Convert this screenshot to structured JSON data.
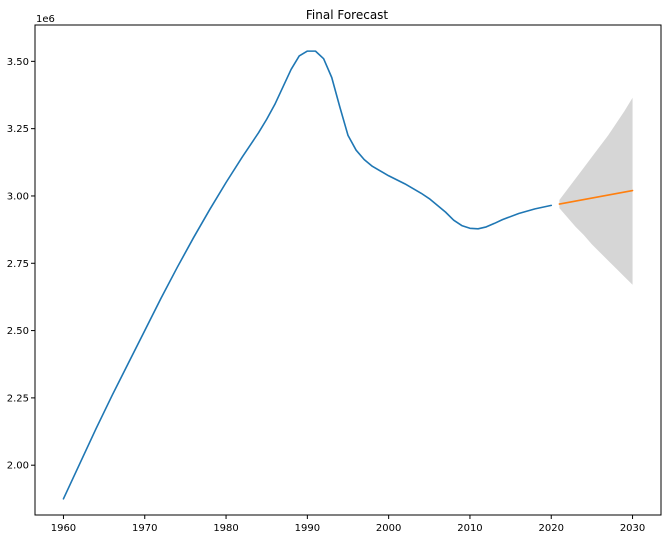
{
  "chart_data": {
    "type": "line",
    "title": "Final Forecast",
    "xlabel": "",
    "ylabel": "",
    "y_offset_label": "1e6",
    "xlim": [
      1956.5,
      2033.5
    ],
    "ylim": [
      1.815,
      3.635
    ],
    "x_ticks": [
      1960,
      1970,
      1980,
      1990,
      2000,
      2010,
      2020,
      2030
    ],
    "x_tick_labels": [
      "1960",
      "1970",
      "1980",
      "1990",
      "2000",
      "2010",
      "2020",
      "2030"
    ],
    "y_ticks": [
      2.0,
      2.25,
      2.5,
      2.75,
      3.0,
      3.25,
      3.5
    ],
    "y_tick_labels": [
      "2.00",
      "2.25",
      "2.50",
      "2.75",
      "3.00",
      "3.25",
      "3.50"
    ],
    "grid": false,
    "legend": "none",
    "series": [
      {
        "color": "#1f77b4",
        "x": [
          1960,
          1962,
          1964,
          1966,
          1968,
          1970,
          1972,
          1974,
          1976,
          1978,
          1980,
          1982,
          1984,
          1985,
          1986,
          1987,
          1988,
          1989,
          1990,
          1991,
          1992,
          1993,
          1994,
          1995,
          1996,
          1997,
          1998,
          2000,
          2002,
          2004,
          2005,
          2006,
          2007,
          2008,
          2009,
          2010,
          2011,
          2012,
          2013,
          2014,
          2016,
          2018,
          2020
        ],
        "values": [
          1.875,
          2.005,
          2.135,
          2.26,
          2.38,
          2.5,
          2.62,
          2.735,
          2.845,
          2.95,
          3.05,
          3.145,
          3.235,
          3.285,
          3.34,
          3.405,
          3.47,
          3.52,
          3.538,
          3.538,
          3.51,
          3.44,
          3.33,
          3.225,
          3.17,
          3.135,
          3.11,
          3.075,
          3.045,
          3.01,
          2.99,
          2.965,
          2.94,
          2.91,
          2.89,
          2.88,
          2.878,
          2.885,
          2.898,
          2.912,
          2.935,
          2.952,
          2.965
        ]
      },
      {
        "color": "#ff7f0e",
        "x": [
          2021,
          2030
        ],
        "values": [
          2.97,
          3.02
        ]
      }
    ],
    "confidence_band": {
      "color": "#bbbbbb",
      "x": [
        2021,
        2022,
        2023,
        2024,
        2025,
        2026,
        2027,
        2028,
        2029,
        2030
      ],
      "upper": [
        2.985,
        3.025,
        3.065,
        3.105,
        3.145,
        3.185,
        3.225,
        3.27,
        3.315,
        3.365
      ],
      "lower": [
        2.955,
        2.92,
        2.885,
        2.855,
        2.82,
        2.79,
        2.76,
        2.73,
        2.7,
        2.67
      ]
    }
  }
}
